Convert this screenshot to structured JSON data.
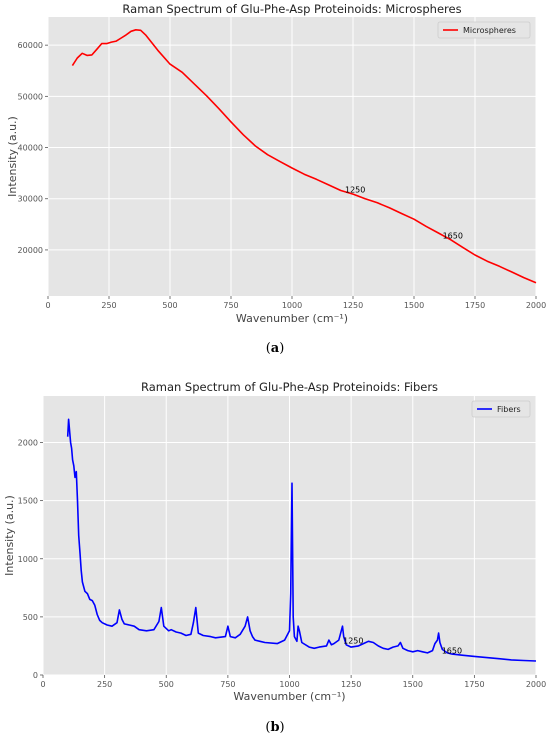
{
  "chart_data": [
    {
      "type": "line",
      "title": "Raman Spectrum of Glu-Phe-Asp Proteinoids: Microspheres",
      "xlabel": "Wavenumber (cm⁻¹)",
      "ylabel": "Intensity (a.u.)",
      "xlim": [
        0,
        2000
      ],
      "ylim": [
        11000,
        65500
      ],
      "xticks": [
        0,
        250,
        500,
        750,
        1000,
        1250,
        1500,
        1750,
        2000
      ],
      "yticks": [
        20000,
        30000,
        40000,
        50000,
        60000
      ],
      "grid": true,
      "legend_position": "top-right",
      "caption": "a",
      "series": [
        {
          "name": "Microspheres",
          "color": "#ff0000",
          "x": [
            100,
            120,
            140,
            160,
            180,
            200,
            220,
            240,
            260,
            280,
            300,
            320,
            340,
            360,
            380,
            400,
            450,
            500,
            550,
            600,
            650,
            700,
            750,
            800,
            850,
            900,
            950,
            1000,
            1050,
            1100,
            1150,
            1200,
            1250,
            1300,
            1350,
            1400,
            1450,
            1500,
            1550,
            1600,
            1650,
            1700,
            1750,
            1800,
            1850,
            1900,
            1950,
            2000
          ],
          "y": [
            56000,
            57500,
            58400,
            58000,
            58100,
            59200,
            60300,
            60300,
            60600,
            60800,
            61400,
            62000,
            62700,
            63000,
            62900,
            62000,
            59000,
            56300,
            54700,
            52400,
            50100,
            47600,
            45000,
            42500,
            40300,
            38600,
            37300,
            36000,
            34800,
            33800,
            32700,
            31600,
            30900,
            30000,
            29200,
            28200,
            27100,
            26000,
            24600,
            23300,
            22000,
            20500,
            19000,
            17800,
            16800,
            15700,
            14600,
            13600
          ]
        }
      ],
      "annotations": [
        {
          "text": "1250",
          "x": 1250,
          "y": 31200
        },
        {
          "text": "1650",
          "x": 1650,
          "y": 22200
        }
      ]
    },
    {
      "type": "line",
      "title": "Raman Spectrum of Glu-Phe-Asp Proteinoids: Fibers",
      "xlabel": "Wavenumber (cm⁻¹)",
      "ylabel": "Intensity (a.u.)",
      "xlim": [
        0,
        2000
      ],
      "ylim": [
        0,
        2400
      ],
      "xticks": [
        0,
        250,
        500,
        750,
        1000,
        1250,
        1500,
        1750,
        2000
      ],
      "yticks": [
        0,
        500,
        1000,
        1500,
        2000
      ],
      "grid": true,
      "legend_position": "top-right",
      "caption": "b",
      "series": [
        {
          "name": "Fibers",
          "color": "#0000ff",
          "x": [
            100,
            104,
            108,
            112,
            116,
            120,
            125,
            130,
            135,
            140,
            145,
            150,
            155,
            160,
            170,
            180,
            190,
            200,
            210,
            220,
            230,
            240,
            260,
            280,
            300,
            310,
            320,
            330,
            350,
            370,
            390,
            420,
            450,
            470,
            480,
            490,
            510,
            520,
            540,
            560,
            580,
            600,
            610,
            620,
            630,
            650,
            680,
            700,
            740,
            750,
            760,
            780,
            800,
            820,
            830,
            840,
            850,
            860,
            880,
            900,
            950,
            980,
            1000,
            1005,
            1010,
            1015,
            1020,
            1030,
            1035,
            1040,
            1050,
            1080,
            1100,
            1120,
            1150,
            1160,
            1170,
            1180,
            1200,
            1215,
            1220,
            1230,
            1250,
            1280,
            1300,
            1320,
            1340,
            1360,
            1380,
            1400,
            1420,
            1440,
            1450,
            1460,
            1480,
            1500,
            1520,
            1540,
            1560,
            1580,
            1590,
            1600,
            1605,
            1610,
            1620,
            1640,
            1660,
            1700,
            1750,
            1800,
            1850,
            1900,
            1950,
            2000
          ],
          "y": [
            2050,
            2200,
            2100,
            2000,
            1950,
            1850,
            1800,
            1700,
            1750,
            1500,
            1200,
            1050,
            900,
            800,
            720,
            700,
            650,
            640,
            600,
            520,
            470,
            450,
            430,
            420,
            450,
            560,
            480,
            440,
            430,
            420,
            390,
            380,
            390,
            460,
            580,
            420,
            380,
            390,
            370,
            360,
            340,
            350,
            450,
            580,
            360,
            340,
            330,
            320,
            330,
            420,
            330,
            320,
            350,
            420,
            500,
            380,
            330,
            300,
            290,
            280,
            270,
            300,
            380,
            700,
            1650,
            500,
            330,
            290,
            420,
            380,
            280,
            240,
            230,
            240,
            250,
            300,
            260,
            270,
            300,
            420,
            330,
            260,
            240,
            250,
            270,
            290,
            280,
            250,
            230,
            220,
            240,
            250,
            280,
            230,
            210,
            200,
            210,
            200,
            190,
            210,
            270,
            300,
            360,
            280,
            220,
            190,
            180,
            170,
            160,
            150,
            140,
            130,
            125,
            120
          ]
        }
      ],
      "annotations": [
        {
          "text": "1250",
          "x": 1250,
          "y": 270
        },
        {
          "text": "1650",
          "x": 1650,
          "y": 185
        }
      ]
    }
  ]
}
